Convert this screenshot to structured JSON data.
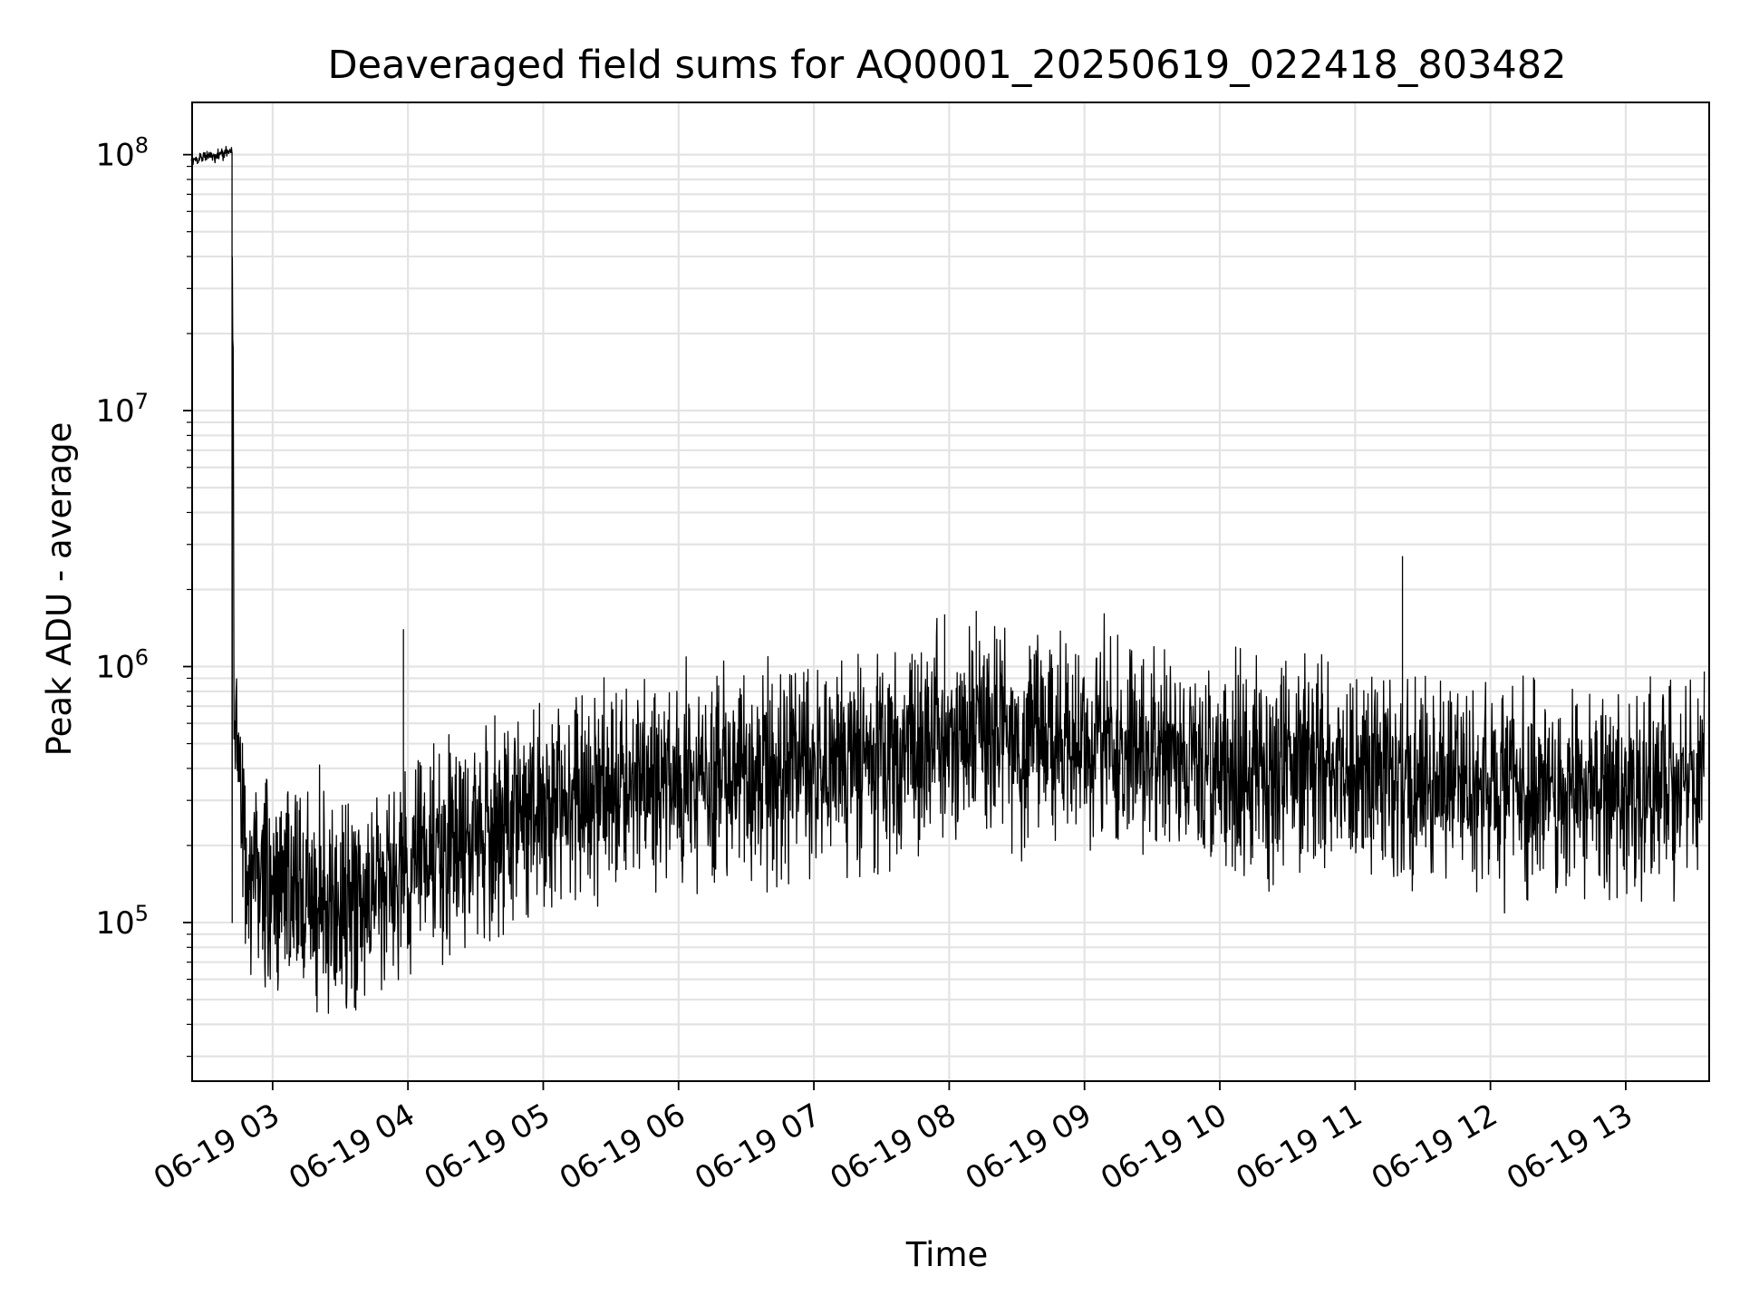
{
  "chart_data": {
    "type": "line",
    "title": "Deaveraged field sums for AQ0001_20250619_022418_803482",
    "xlabel": "Time",
    "ylabel": "Peak ADU - average",
    "yscale": "log",
    "ylim": [
      24000,
      160000000
    ],
    "xlim": [
      "2025-06-19 02:24:18",
      "2025-06-19 13:37:00"
    ],
    "x_ticks": [
      {
        "value": "2025-06-19 03:00",
        "label": "06-19 03"
      },
      {
        "value": "2025-06-19 04:00",
        "label": "06-19 04"
      },
      {
        "value": "2025-06-19 05:00",
        "label": "06-19 05"
      },
      {
        "value": "2025-06-19 06:00",
        "label": "06-19 06"
      },
      {
        "value": "2025-06-19 07:00",
        "label": "06-19 07"
      },
      {
        "value": "2025-06-19 08:00",
        "label": "06-19 08"
      },
      {
        "value": "2025-06-19 09:00",
        "label": "06-19 09"
      },
      {
        "value": "2025-06-19 10:00",
        "label": "06-19 10"
      },
      {
        "value": "2025-06-19 11:00",
        "label": "06-19 11"
      },
      {
        "value": "2025-06-19 12:00",
        "label": "06-19 12"
      },
      {
        "value": "2025-06-19 13:00",
        "label": "06-19 13"
      }
    ],
    "y_ticks": [
      {
        "value": 100000,
        "base": "10",
        "exp": "5"
      },
      {
        "value": 1000000,
        "base": "10",
        "exp": "6"
      },
      {
        "value": 10000000,
        "base": "10",
        "exp": "7"
      },
      {
        "value": 100000000,
        "base": "10",
        "exp": "8"
      }
    ],
    "grid": true,
    "legend": "none",
    "line_color": "#000000",
    "series": [
      {
        "x": [
          "2025-06-19 02:24",
          "2025-06-19 02:30",
          "2025-06-19 02:35",
          "2025-06-19 02:42",
          "2025-06-19 02:43",
          "2025-06-19 02:50",
          "2025-06-19 03:00",
          "2025-06-19 03:15",
          "2025-06-19 03:30",
          "2025-06-19 03:45",
          "2025-06-19 04:00",
          "2025-06-19 04:15",
          "2025-06-19 04:30",
          "2025-06-19 04:45",
          "2025-06-19 05:00",
          "2025-06-19 05:15",
          "2025-06-19 05:30",
          "2025-06-19 05:45",
          "2025-06-19 06:00",
          "2025-06-19 06:15",
          "2025-06-19 06:30",
          "2025-06-19 06:45",
          "2025-06-19 07:00",
          "2025-06-19 07:15",
          "2025-06-19 07:30",
          "2025-06-19 07:45",
          "2025-06-19 08:00",
          "2025-06-19 08:15",
          "2025-06-19 08:30",
          "2025-06-19 08:45",
          "2025-06-19 09:00",
          "2025-06-19 09:15",
          "2025-06-19 09:30",
          "2025-06-19 09:45",
          "2025-06-19 10:00",
          "2025-06-19 10:15",
          "2025-06-19 10:30",
          "2025-06-19 10:45",
          "2025-06-19 11:00",
          "2025-06-19 11:15",
          "2025-06-19 11:30",
          "2025-06-19 11:45",
          "2025-06-19 12:00",
          "2025-06-19 12:15",
          "2025-06-19 12:30",
          "2025-06-19 12:45",
          "2025-06-19 13:00",
          "2025-06-19 13:15",
          "2025-06-19 13:35"
        ],
        "y": [
          95000000,
          98000000,
          100000000,
          102000000,
          600000,
          140000,
          130000,
          125000,
          120000,
          130000,
          160000,
          190000,
          220000,
          250000,
          270000,
          300000,
          330000,
          350000,
          360000,
          370000,
          380000,
          385000,
          390000,
          410000,
          440000,
          500000,
          580000,
          600000,
          560000,
          520000,
          500000,
          480000,
          460000,
          440000,
          420000,
          410000,
          400000,
          390000,
          380000,
          370000,
          360000,
          350000,
          345000,
          340000,
          335000,
          330000,
          330000,
          335000,
          340000
        ],
        "spikes": [
          {
            "x": "2025-06-19 03:58",
            "y": 1400000
          },
          {
            "x": "2025-06-19 07:58",
            "y": 1600000
          },
          {
            "x": "2025-06-19 08:12",
            "y": 1650000
          },
          {
            "x": "2025-06-19 11:21",
            "y": 2700000
          }
        ]
      }
    ]
  }
}
